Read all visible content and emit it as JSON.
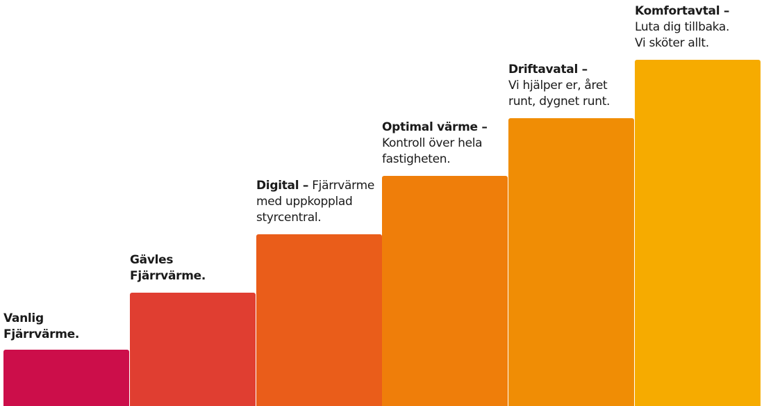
{
  "steps": [
    {
      "title": "Vanlig Fjärrvärme."
    },
    {
      "title": "Gävles Fjärrvärme."
    },
    {
      "title": "Digital –",
      "text": "Fjärrvärme med uppkopplad styrcentral."
    },
    {
      "title": "Optimal värme –",
      "text": "Kontroll över hela fastigheten."
    },
    {
      "title": "Driftavatal –",
      "text": "Vi hjälper er, året runt, dygnet runt."
    },
    {
      "title": "Komfortavtal –",
      "text": "Luta dig tillbaka. Vi sköter allt."
    }
  ]
}
